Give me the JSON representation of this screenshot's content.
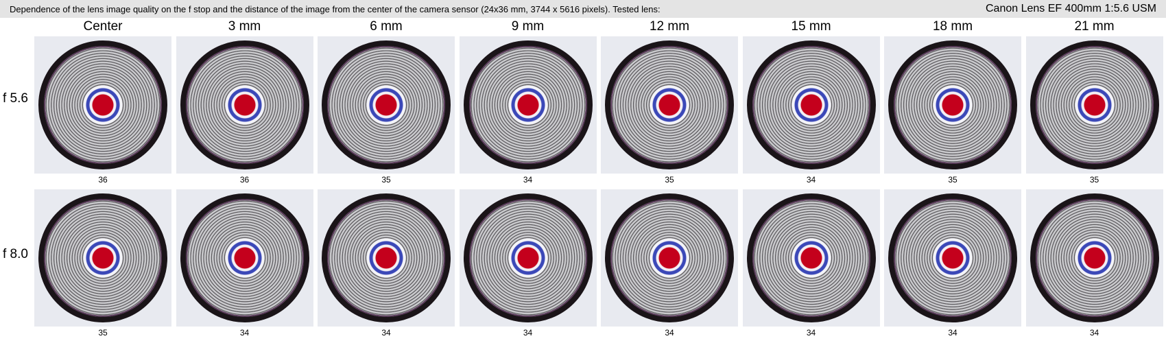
{
  "header": {
    "description": "Dependence of the lens image quality on the f stop and the distance of the image from the center of the camera sensor (24x36 mm, 3744 x 5616 pixels).  Tested lens:",
    "lens": "Canon Lens EF 400mm 1:5.6 USM"
  },
  "columns": [
    "Center",
    "3 mm",
    "6 mm",
    "9 mm",
    "12 mm",
    "15 mm",
    "18 mm",
    "21 mm"
  ],
  "rows": [
    {
      "label": "f 5.6",
      "scores": [
        36,
        36,
        35,
        34,
        35,
        34,
        35,
        35
      ]
    },
    {
      "label": "f 8.0",
      "scores": [
        35,
        34,
        34,
        34,
        34,
        34,
        34,
        34
      ]
    }
  ]
}
